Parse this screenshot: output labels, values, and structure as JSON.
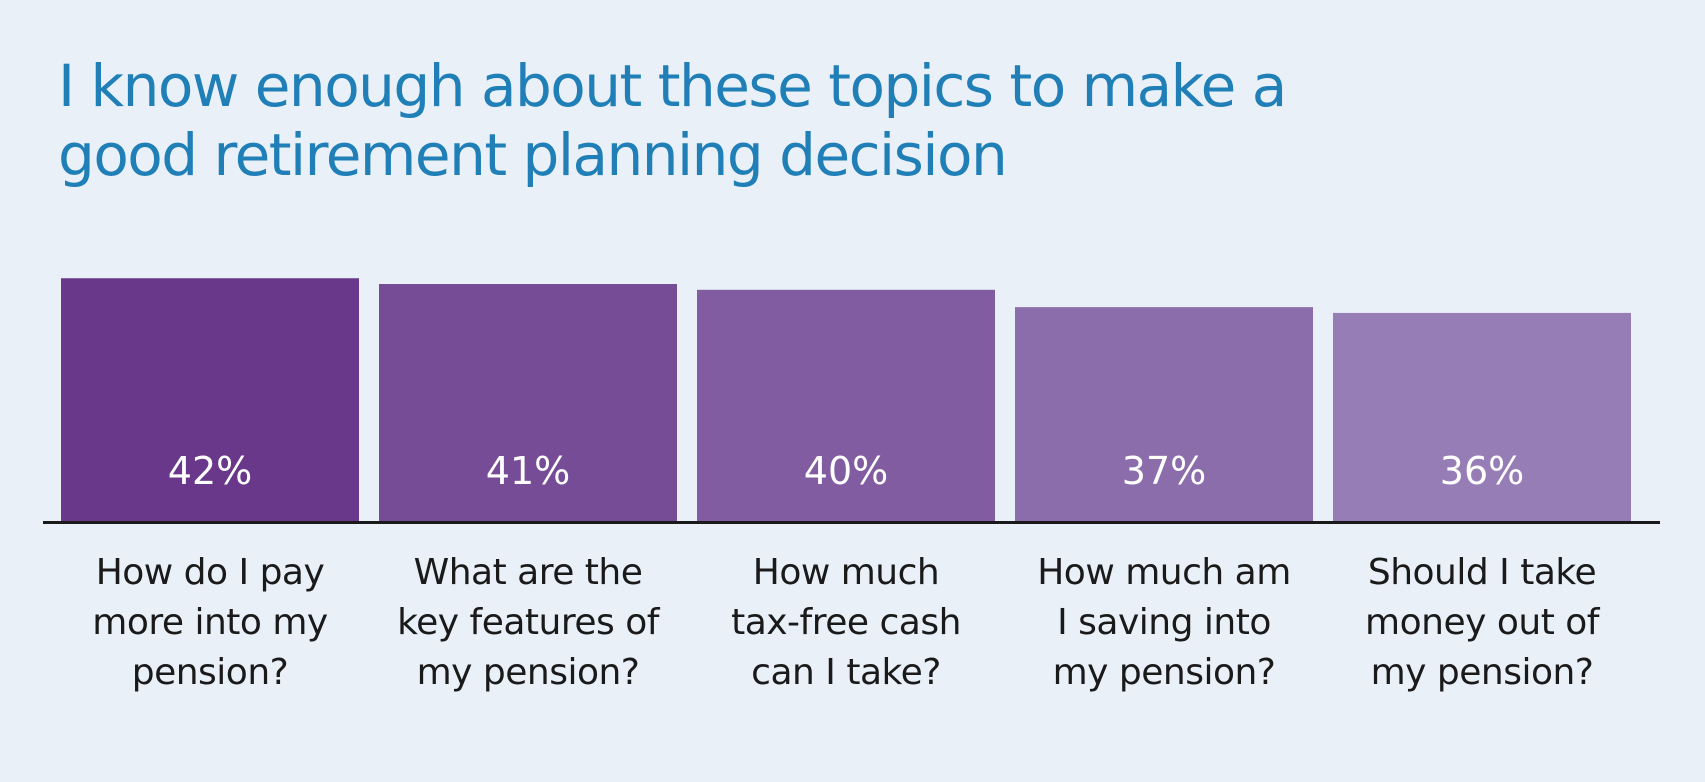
{
  "chart_data": {
    "type": "bar",
    "title": "I know enough about these topics to make a good retirement planning decision",
    "title_lines": [
      "I know enough about these topics to make a",
      "good retirement planning decision"
    ],
    "categories": [
      "How do I pay more into my pension?",
      "What are the key features of my pension?",
      "How much tax-free cash can I take?",
      "How much am I saving into my pension?",
      "Should I take money out of my pension?"
    ],
    "category_lines": [
      [
        "How do I pay",
        "more into my",
        "pension?"
      ],
      [
        "What are the",
        "key features of",
        "my pension?"
      ],
      [
        "How much",
        "tax-free cash",
        "can I take?"
      ],
      [
        "How much am",
        "I saving into",
        "my pension?"
      ],
      [
        "Should I take",
        "money out of",
        "my pension?"
      ]
    ],
    "values": [
      42,
      41,
      40,
      37,
      36
    ],
    "value_labels": [
      "42%",
      "41%",
      "40%",
      "37%",
      "36%"
    ],
    "unit": "%",
    "colors": [
      "#69388a",
      "#774c96",
      "#815ca1",
      "#8c6dab",
      "#977db5"
    ],
    "title_color": "#1f7fb6",
    "background_color": "#e9f0f8",
    "axis_color": "#1a1a1a",
    "grid": false,
    "legend": "none"
  }
}
